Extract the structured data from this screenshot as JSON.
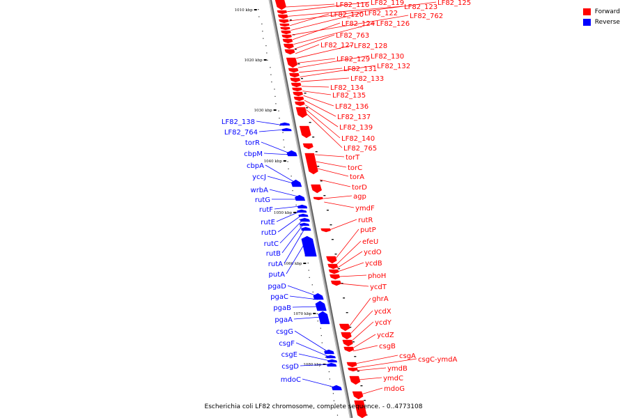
{
  "map": {
    "caption": "Escherichia coli LF82 chromosome, complete sequence. - 0..4773108",
    "legend": [
      {
        "label": "Forward",
        "color": "#ff0000"
      },
      {
        "label": "Reverse",
        "color": "#0000ff"
      }
    ],
    "colors": {
      "forward": "#ff0000",
      "reverse": "#0000ff",
      "backbone": "#808080"
    },
    "scale_ticks": [
      {
        "label": "1010 kbp",
        "kbp": 1010
      },
      {
        "label": "1020 kbp",
        "kbp": 1020
      },
      {
        "label": "1030 kbp",
        "kbp": 1030
      },
      {
        "label": "1040 kbp",
        "kbp": 1040
      },
      {
        "label": "1050 kbp",
        "kbp": 1050
      },
      {
        "label": "1060 kbp",
        "kbp": 1060
      },
      {
        "label": "1070 kbp",
        "kbp": 1070
      },
      {
        "label": "1080 kbp",
        "kbp": 1080
      }
    ],
    "forward_genes": [
      "LF82_116",
      "LF82_119",
      "LF82_123",
      "LF82_125",
      "LF82_120",
      "LF82_122",
      "LF82_762",
      "LF82_124",
      "LF82_126",
      "LF82_763",
      "LF82_127",
      "LF82_128",
      "LF82_129",
      "LF82_130",
      "LF82_131",
      "LF82_132",
      "LF82_133",
      "LF82_134",
      "LF82_135",
      "LF82_136",
      "LF82_137",
      "LF82_139",
      "LF82_140",
      "LF82_765",
      "torT",
      "torC",
      "torA",
      "torD",
      "agp",
      "ymdF",
      "rutR",
      "putP",
      "efeU",
      "ycdO",
      "ycdB",
      "phoH",
      "ycdT",
      "ghrA",
      "ycdX",
      "ycdY",
      "ycdZ",
      "csgB",
      "csgA",
      "csgC-ymdA",
      "ymdB",
      "ymdC",
      "mdoG"
    ],
    "reverse_genes": [
      "LF82_138",
      "LF82_764",
      "torR",
      "cbpM",
      "cbpA",
      "yccJ",
      "wrbA",
      "rutG",
      "rutF",
      "rutE",
      "rutD",
      "rutC",
      "rutB",
      "rutA",
      "putA",
      "pgaD",
      "pgaC",
      "pgaB",
      "pgaA",
      "csgG",
      "csgF",
      "csgE",
      "csgD",
      "mdoC"
    ]
  }
}
